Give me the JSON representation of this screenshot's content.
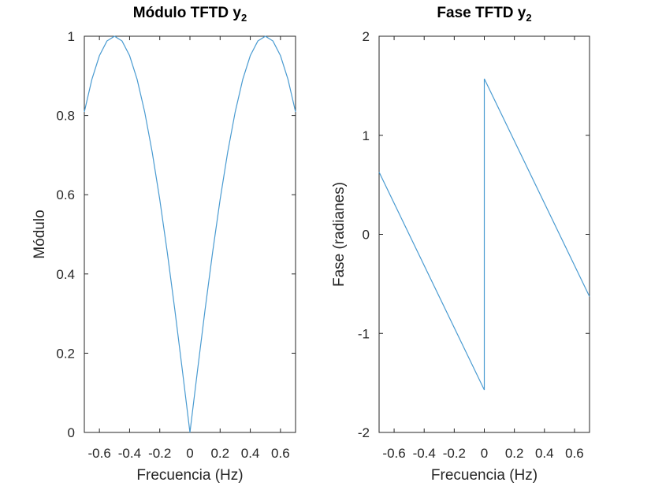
{
  "chart_data": [
    {
      "type": "line",
      "title": "Módulo TFTD y",
      "title_subscript": "2",
      "xlabel": "Frecuencia (Hz)",
      "ylabel": "Módulo",
      "xlim": [
        -0.7,
        0.7
      ],
      "ylim": [
        0,
        1
      ],
      "xticks": [
        -0.6,
        -0.4,
        -0.2,
        0,
        0.2,
        0.4,
        0.6
      ],
      "xtick_labels": [
        "-0.6",
        "-0.4",
        "-0.2",
        "0",
        "0.2",
        "0.4",
        "0.6"
      ],
      "yticks": [
        0,
        0.2,
        0.4,
        0.6,
        0.8,
        1
      ],
      "ytick_labels": [
        "0",
        "0.2",
        "0.4",
        "0.6",
        "0.8",
        "1"
      ],
      "grid": false,
      "series": [
        {
          "color": "#4a9bd1",
          "x": [
            -0.7,
            -0.65,
            -0.6,
            -0.55,
            -0.5,
            -0.45,
            -0.4,
            -0.35,
            -0.3,
            -0.25,
            -0.2,
            -0.15,
            -0.1,
            -0.05,
            0,
            0.05,
            0.1,
            0.15,
            0.2,
            0.25,
            0.3,
            0.35,
            0.4,
            0.45,
            0.5,
            0.55,
            0.6,
            0.65,
            0.7
          ],
          "y": [
            0.809,
            0.891,
            0.951,
            0.988,
            1.0,
            0.988,
            0.951,
            0.891,
            0.809,
            0.707,
            0.588,
            0.454,
            0.309,
            0.156,
            0.0,
            0.156,
            0.309,
            0.454,
            0.588,
            0.707,
            0.809,
            0.891,
            0.951,
            0.988,
            1.0,
            0.988,
            0.951,
            0.891,
            0.809
          ]
        }
      ]
    },
    {
      "type": "line",
      "title": "Fase TFTD y",
      "title_subscript": "2",
      "xlabel": "Frecuencia (Hz)",
      "ylabel": "Fase (radianes)",
      "xlim": [
        -0.7,
        0.7
      ],
      "ylim": [
        -2,
        2
      ],
      "xticks": [
        -0.6,
        -0.4,
        -0.2,
        0,
        0.2,
        0.4,
        0.6
      ],
      "xtick_labels": [
        "-0.6",
        "-0.4",
        "-0.2",
        "0",
        "0.2",
        "0.4",
        "0.6"
      ],
      "yticks": [
        -2,
        -1,
        0,
        1,
        2
      ],
      "ytick_labels": [
        "-2",
        "-1",
        "0",
        "1",
        "2"
      ],
      "grid": false,
      "series": [
        {
          "color": "#4a9bd1",
          "x": [
            -0.7,
            0.0,
            0.0,
            0.7
          ],
          "y": [
            0.628,
            -1.571,
            1.571,
            -0.628
          ]
        }
      ]
    }
  ]
}
